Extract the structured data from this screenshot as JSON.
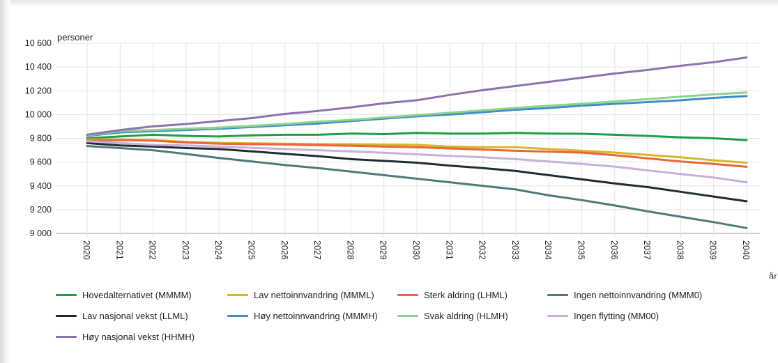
{
  "chart_data": {
    "type": "line",
    "ylabel": "personer",
    "xlabel": "år",
    "ylim": [
      9000,
      10600
    ],
    "yticks": [
      9000,
      9200,
      9400,
      9600,
      9800,
      10000,
      10200,
      10400,
      10600
    ],
    "ytick_labels": [
      "9 000",
      "9 200",
      "9 400",
      "9 600",
      "9 800",
      "10 000",
      "10 200",
      "10 400",
      "10 600"
    ],
    "x": [
      2020,
      2021,
      2022,
      2023,
      2024,
      2025,
      2026,
      2027,
      2028,
      2029,
      2030,
      2031,
      2032,
      2033,
      2034,
      2035,
      2036,
      2037,
      2038,
      2039,
      2040
    ],
    "x_labels": [
      "2020",
      "2021",
      "2022",
      "2023",
      "2024",
      "2025",
      "2026",
      "2027",
      "2028",
      "2029",
      "2030",
      "2031",
      "2032",
      "2033",
      "2034",
      "2035",
      "2036",
      "2037",
      "2038",
      "2039",
      "2040"
    ],
    "grid": true,
    "legend_position": "bottom",
    "series": [
      {
        "name": "Hovedalternativet (MMMM)",
        "color": "#1e9e4a",
        "values": [
          9800,
          9815,
          9830,
          9820,
          9815,
          9825,
          9830,
          9830,
          9840,
          9835,
          9845,
          9840,
          9840,
          9845,
          9840,
          9838,
          9830,
          9820,
          9808,
          9800,
          9785
        ]
      },
      {
        "name": "Lav nettoinnvandring (MMML)",
        "color": "#d6b62a",
        "values": [
          9790,
          9790,
          9785,
          9770,
          9762,
          9758,
          9755,
          9752,
          9750,
          9748,
          9745,
          9730,
          9725,
          9725,
          9710,
          9695,
          9680,
          9660,
          9640,
          9615,
          9595
        ]
      },
      {
        "name": "Sterk aldring (LHML)",
        "color": "#e8673a",
        "values": [
          9780,
          9785,
          9780,
          9765,
          9755,
          9750,
          9748,
          9742,
          9738,
          9730,
          9725,
          9715,
          9705,
          9695,
          9688,
          9680,
          9658,
          9632,
          9605,
          9585,
          9560
        ]
      },
      {
        "name": "Ingen nettoinnvandring (MMM0)",
        "color": "#4f7a78",
        "values": [
          9735,
          9718,
          9700,
          9668,
          9635,
          9605,
          9575,
          9550,
          9520,
          9490,
          9460,
          9430,
          9400,
          9370,
          9320,
          9280,
          9235,
          9185,
          9140,
          9095,
          9045
        ]
      },
      {
        "name": "Lav nasjonal vekst (LLML)",
        "color": "#1f2d32",
        "values": [
          9760,
          9740,
          9730,
          9718,
          9710,
          9690,
          9670,
          9650,
          9625,
          9610,
          9595,
          9570,
          9550,
          9525,
          9490,
          9455,
          9420,
          9390,
          9350,
          9310,
          9270
        ]
      },
      {
        "name": "Høy nettoinnvandring (MMMH)",
        "color": "#3b8fc6",
        "values": [
          9820,
          9850,
          9860,
          9870,
          9880,
          9895,
          9910,
          9925,
          9945,
          9965,
          9985,
          10000,
          10020,
          10040,
          10055,
          10075,
          10090,
          10105,
          10120,
          10140,
          10155
        ]
      },
      {
        "name": "Svak aldring (HLMH)",
        "color": "#8fd18f",
        "values": [
          9825,
          9860,
          9870,
          9880,
          9890,
          9905,
          9920,
          9940,
          9955,
          9975,
          9995,
          10015,
          10035,
          10055,
          10075,
          10090,
          10110,
          10130,
          10150,
          10170,
          10185
        ]
      },
      {
        "name": "Ingen flytting (MM00)",
        "color": "#c8b0d8",
        "values": [
          9775,
          9760,
          9745,
          9740,
          9730,
          9720,
          9710,
          9700,
          9690,
          9678,
          9665,
          9652,
          9640,
          9625,
          9605,
          9585,
          9562,
          9530,
          9500,
          9470,
          9430
        ]
      },
      {
        "name": "Høy nasjonal vekst (HHMH)",
        "color": "#8e72b0",
        "values": [
          9830,
          9870,
          9900,
          9920,
          9945,
          9970,
          10005,
          10030,
          10060,
          10095,
          10120,
          10165,
          10205,
          10240,
          10275,
          10310,
          10345,
          10375,
          10410,
          10440,
          10480
        ]
      }
    ]
  }
}
